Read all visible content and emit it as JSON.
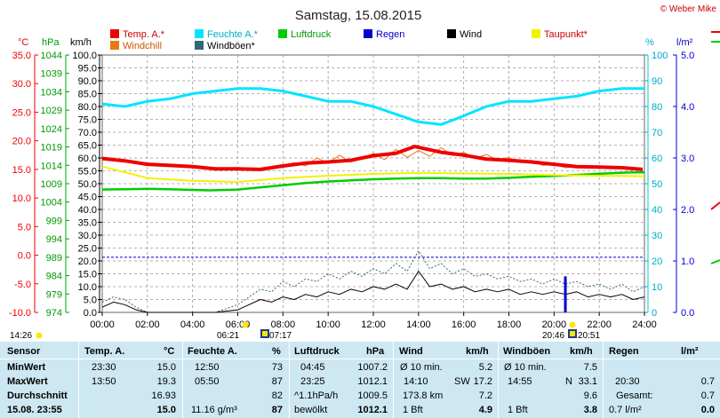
{
  "title": "Samstag, 15.08.2015",
  "credit": "© Weber Mike",
  "colors": {
    "temp": "#ee0000",
    "feuchte": "#00e5ff",
    "luftdruck": "#00cc00",
    "regen": "#0000cc",
    "wind": "#000000",
    "taupunkt": "#f2f200",
    "windchill": "#e87a10",
    "windboeen": "#336677",
    "grid": "#999999",
    "table_bg": "#cde8f2"
  },
  "legend": [
    {
      "label": "Temp. A.*",
      "color": "#ee0000"
    },
    {
      "label": "Feuchte A.*",
      "color": "#00e5ff"
    },
    {
      "label": "Luftdruck",
      "color": "#00cc00"
    },
    {
      "label": "Regen",
      "color": "#0000cc"
    },
    {
      "label": "Wind",
      "color": "#000000"
    },
    {
      "label": "Taupunkt*",
      "color": "#f2f200"
    },
    {
      "label": "Windchill",
      "color": "#e87a10"
    },
    {
      "label": "Windböen*",
      "color": "#336677"
    }
  ],
  "axis_headers": {
    "temp": "°C",
    "pressure": "hPa",
    "wind": "km/h",
    "humidity": "%",
    "rain": "l/m²"
  },
  "chart_data": {
    "type": "line",
    "x_range": [
      "00:00",
      "24:00"
    ],
    "x_ticks": [
      "00:00",
      "02:00",
      "04:00",
      "06:00",
      "08:00",
      "10:00",
      "12:00",
      "14:00",
      "16:00",
      "18:00",
      "20:00",
      "22:00",
      "24:00"
    ],
    "axes": {
      "temp": {
        "unit": "°C",
        "range": [
          -10,
          35
        ],
        "ticks": [
          "35.0",
          "30.0",
          "25.0",
          "20.0",
          "15.0",
          "10.0",
          "5.0",
          "0.0",
          "-5.0",
          "-10.0"
        ]
      },
      "pressure": {
        "unit": "hPa",
        "range": [
          974,
          1044
        ],
        "ticks": [
          "1044",
          "1039",
          "1034",
          "1029",
          "1024",
          "1019",
          "1014",
          "1009",
          "1004",
          "999",
          "994",
          "989",
          "984",
          "979",
          "974"
        ]
      },
      "wind": {
        "unit": "km/h",
        "range": [
          0,
          100
        ],
        "ticks": [
          "100.0",
          "95.0",
          "90.0",
          "85.0",
          "80.0",
          "75.0",
          "70.0",
          "65.0",
          "60.0",
          "55.0",
          "50.0",
          "45.0",
          "40.0",
          "35.0",
          "30.0",
          "25.0",
          "20.0",
          "15.0",
          "10.0",
          "5.0",
          "0.0"
        ]
      },
      "humidity": {
        "unit": "%",
        "range": [
          0,
          100
        ],
        "ticks": [
          "100",
          "90",
          "80",
          "70",
          "60",
          "50",
          "40",
          "30",
          "20",
          "10",
          "0"
        ]
      },
      "rain": {
        "unit": "l/m²",
        "range": [
          0,
          5
        ],
        "ticks": [
          "5.0",
          "4.0",
          "3.0",
          "2.0",
          "1.0",
          "0.0"
        ]
      }
    },
    "series": [
      {
        "name": "Temp. A.*",
        "axis": "temp",
        "x_hours": [
          0,
          1,
          2,
          3,
          4,
          5,
          6,
          7,
          8,
          9,
          10,
          11,
          12,
          13,
          13.83,
          15,
          16,
          17,
          18,
          19,
          20,
          21,
          22,
          23,
          23.92
        ],
        "values": [
          16.9,
          16.5,
          15.9,
          15.7,
          15.5,
          15.1,
          15.1,
          15.0,
          15.6,
          16.1,
          16.3,
          16.6,
          17.4,
          17.8,
          19.0,
          18.0,
          17.5,
          16.8,
          16.6,
          16.3,
          15.9,
          15.5,
          15.4,
          15.3,
          15.0
        ]
      },
      {
        "name": "Feuchte A.*",
        "axis": "humidity",
        "x_hours": [
          0,
          1,
          2,
          3,
          4,
          5,
          6,
          7,
          8,
          9,
          10,
          11,
          12,
          13,
          14,
          15,
          15.9,
          17,
          18,
          19,
          20,
          21,
          22,
          23,
          24
        ],
        "values": [
          81,
          80,
          82,
          83,
          85,
          86,
          87,
          87,
          86,
          84,
          82,
          82,
          80,
          77,
          74,
          73,
          76,
          80,
          82,
          82,
          83,
          84,
          86,
          87,
          87
        ]
      },
      {
        "name": "Luftdruck",
        "axis": "pressure",
        "x_hours": [
          0,
          1,
          2,
          3,
          4,
          4.75,
          6,
          7,
          8,
          9,
          10,
          11,
          12,
          13,
          14,
          15,
          16,
          17,
          18,
          19,
          20,
          21,
          22,
          23,
          23.42,
          24
        ],
        "values": [
          1007.4,
          1007.5,
          1007.6,
          1007.5,
          1007.3,
          1007.2,
          1007.4,
          1008.0,
          1008.6,
          1009.2,
          1009.6,
          1009.9,
          1010.2,
          1010.4,
          1010.5,
          1010.5,
          1010.4,
          1010.4,
          1010.6,
          1010.9,
          1011.1,
          1011.4,
          1011.7,
          1012.0,
          1012.1,
          1012.1
        ]
      },
      {
        "name": "Taupunkt*",
        "axis": "temp",
        "x_hours": [
          0,
          2,
          4,
          6,
          8,
          10,
          12,
          14,
          16,
          18,
          20,
          22,
          24
        ],
        "values": [
          15.5,
          13.5,
          13.0,
          12.8,
          13.5,
          13.9,
          14.2,
          14.4,
          14.3,
          14.2,
          14.0,
          13.9,
          13.8
        ]
      },
      {
        "name": "Windchill",
        "axis": "temp",
        "x_hours": [
          8.0,
          8.5,
          9.0,
          9.5,
          10.0,
          10.5,
          11.0,
          11.5,
          12.0,
          12.5,
          13.0,
          13.5,
          14.0,
          14.5,
          15.0,
          15.5,
          16.0,
          16.5,
          17.0,
          17.5,
          18.0,
          18.5,
          19.0,
          19.5,
          20.0,
          20.5,
          21.0
        ],
        "values": [
          15.6,
          16.2,
          15.6,
          17.0,
          16.1,
          17.5,
          16.3,
          16.8,
          17.8,
          16.7,
          18.5,
          17.1,
          18.3,
          17.3,
          18.8,
          17.4,
          18.0,
          16.9,
          17.6,
          16.6,
          17.1,
          16.2,
          16.6,
          15.7,
          15.9,
          15.3,
          15.5
        ]
      },
      {
        "name": "Wind",
        "axis": "wind",
        "x_hours": [
          0,
          0.5,
          1.0,
          1.5,
          2.0,
          3.0,
          4.0,
          5.0,
          6.0,
          6.5,
          7.0,
          7.5,
          8.0,
          8.5,
          9.0,
          9.5,
          10.0,
          10.5,
          11.0,
          11.5,
          12.0,
          12.5,
          13.0,
          13.5,
          14.0,
          14.5,
          15.0,
          15.5,
          16.0,
          16.5,
          17.0,
          17.5,
          18.0,
          18.5,
          19.0,
          19.5,
          20.0,
          20.5,
          21.0,
          21.5,
          22.0,
          22.5,
          23.0,
          23.5,
          24.0
        ],
        "values": [
          2,
          4,
          3,
          1,
          0,
          0,
          0,
          0,
          1,
          3,
          5,
          4,
          6,
          5,
          7,
          6,
          8,
          7,
          9,
          8,
          10,
          9,
          11,
          9,
          16,
          10,
          11,
          9,
          10,
          8,
          9,
          8,
          9,
          7,
          8,
          7,
          8,
          7,
          8,
          6,
          7,
          6,
          7,
          5,
          6
        ]
      },
      {
        "name": "Windböen*",
        "axis": "wind",
        "x_hours": [
          0,
          0.5,
          1.0,
          1.5,
          2.0,
          3.0,
          4.0,
          5.0,
          6.0,
          6.5,
          7.0,
          7.5,
          8.0,
          8.5,
          9.0,
          9.5,
          10.0,
          10.5,
          11.0,
          11.5,
          12.0,
          12.5,
          13.0,
          13.5,
          14.0,
          14.5,
          15.0,
          15.5,
          16.0,
          16.5,
          17.0,
          17.5,
          18.0,
          18.5,
          19.0,
          19.5,
          20.0,
          20.5,
          21.0,
          21.5,
          22.0,
          22.5,
          23.0,
          23.5,
          24.0
        ],
        "values": [
          4,
          6,
          5,
          2,
          0,
          0,
          0,
          0,
          3,
          6,
          9,
          8,
          12,
          10,
          13,
          12,
          15,
          13,
          16,
          14,
          17,
          15,
          19,
          16,
          24,
          17,
          19,
          15,
          17,
          14,
          15,
          13,
          14,
          12,
          13,
          11,
          13,
          11,
          12,
          10,
          11,
          9,
          11,
          8,
          10
        ]
      },
      {
        "name": "Regen",
        "axis": "rain",
        "type": "bar",
        "x_hours": [
          20.5
        ],
        "values": [
          0.7
        ]
      }
    ],
    "reference_line": {
      "axis": "pressure",
      "value": 989
    },
    "grid": true
  },
  "sun": {
    "row1_left": "14:26",
    "sunrise_time": "06:21",
    "sunset_time": "20:51",
    "moon_times": [
      "07:17",
      "20:46"
    ]
  },
  "table": {
    "headers": {
      "sensor": "Sensor",
      "temp": "Temp. A.",
      "temp_unit": "°C",
      "feuchte": "Feuchte A.",
      "feuchte_unit": "%",
      "luft": "Luftdruck",
      "luft_unit": "hPa",
      "wind": "Wind",
      "wind_unit": "km/h",
      "boeen": "Windböen",
      "boeen_unit": "km/h",
      "regen": "Regen",
      "regen_unit": "l/m²"
    },
    "rows": [
      {
        "label": "MinWert",
        "temp_time": "23:30",
        "temp_val": "15.0",
        "feuchte_time": "12:50",
        "feuchte_val": "73",
        "luft_time": "04:45",
        "luft_val": "1007.2",
        "wind_a": "Ø 10 min.",
        "wind_b": "",
        "wind_val": "5.2",
        "boeen_a": "Ø 10 min.",
        "boeen_b": "",
        "boeen_val": "7.5",
        "regen_a": "",
        "regen_val": ""
      },
      {
        "label": "MaxWert",
        "temp_time": "13:50",
        "temp_val": "19.3",
        "feuchte_time": "05:50",
        "feuchte_val": "87",
        "luft_time": "23:25",
        "luft_val": "1012.1",
        "wind_a": "14:10",
        "wind_b": "SW",
        "wind_val": "17.2",
        "boeen_a": "14:55",
        "boeen_b": "N",
        "boeen_val": "33.1",
        "regen_a": "20:30",
        "regen_val": "0.7"
      },
      {
        "label": "Durchschnitt",
        "temp_time": "",
        "temp_val": "16.93",
        "feuchte_time": "",
        "feuchte_val": "82",
        "luft_time": "^1.1hPa/h",
        "luft_val": "1009.5",
        "wind_a": "173.8 km",
        "wind_b": "",
        "wind_val": "7.2",
        "boeen_a": "",
        "boeen_b": "",
        "boeen_val": "9.6",
        "regen_a": "Gesamt:",
        "regen_val": "0.7"
      },
      {
        "label": "15.08. 23:55",
        "temp_time": "",
        "temp_val": "15.0",
        "feuchte_time": "11.16 g/m³",
        "feuchte_val": "87",
        "luft_time": "bewölkt",
        "luft_val": "1012.1",
        "wind_a": "1 Bft",
        "wind_b": "",
        "wind_val": "4.9",
        "boeen_a": "1 Bft",
        "boeen_b": "",
        "boeen_val": "3.8",
        "regen_a": "0.7 l/m²",
        "regen_val": "0.0"
      }
    ]
  }
}
